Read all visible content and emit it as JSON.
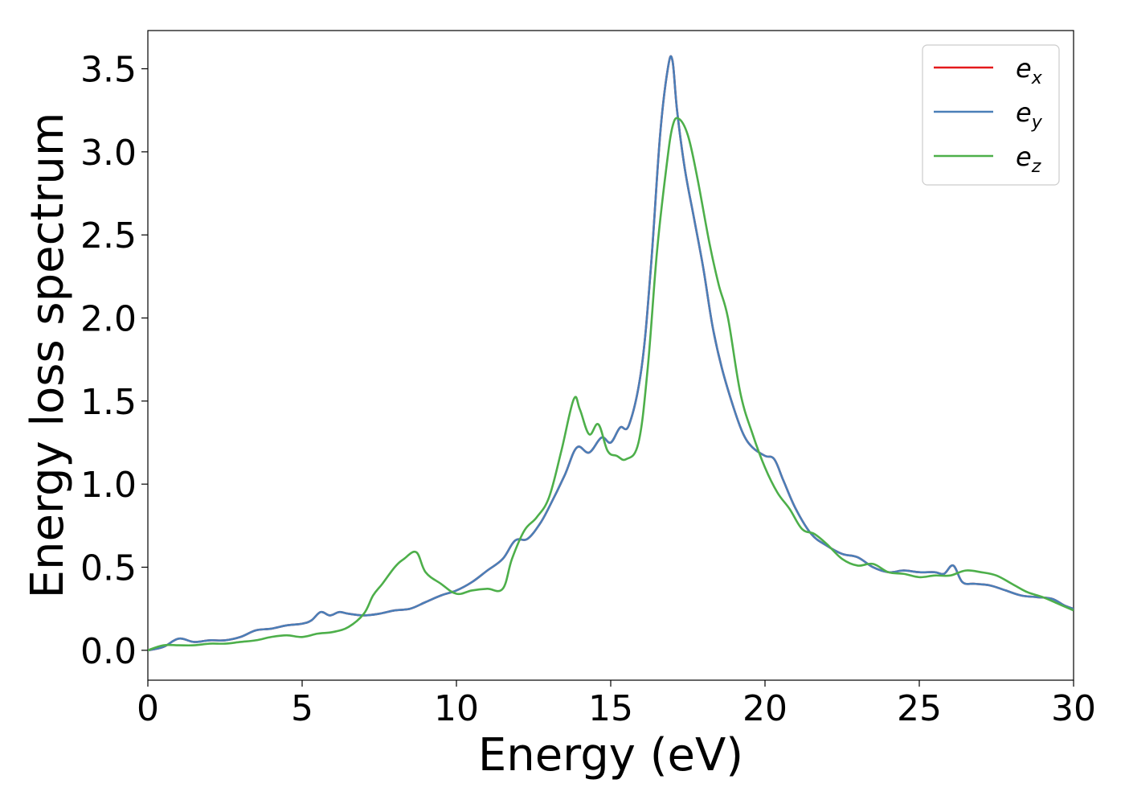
{
  "chart_data": {
    "type": "line",
    "xlabel": "Energy (eV)",
    "ylabel": "Energy loss spectrum",
    "xlim": [
      0,
      30
    ],
    "ylim": [
      -0.18,
      3.73
    ],
    "x_ticks": [
      0,
      5,
      10,
      15,
      20,
      25,
      30
    ],
    "x_tick_labels": [
      "0",
      "5",
      "10",
      "15",
      "20",
      "25",
      "30"
    ],
    "y_ticks": [
      0.0,
      0.5,
      1.0,
      1.5,
      2.0,
      2.5,
      3.0,
      3.5
    ],
    "y_tick_labels": [
      "0.0",
      "0.5",
      "1.0",
      "1.5",
      "2.0",
      "2.5",
      "3.0",
      "3.5"
    ],
    "grid": false,
    "legend_position": "top-right",
    "series": [
      {
        "name": "e",
        "subscript": "x",
        "color": "#e41a1c",
        "x": [
          0,
          0.5,
          1.0,
          1.5,
          2.0,
          2.5,
          3.0,
          3.5,
          4.0,
          4.5,
          5.0,
          5.3,
          5.6,
          5.9,
          6.2,
          6.5,
          7.0,
          7.5,
          8.0,
          8.5,
          9.0,
          9.5,
          10.0,
          10.5,
          11.0,
          11.5,
          11.9,
          12.3,
          12.7,
          13.0,
          13.5,
          13.9,
          14.3,
          14.7,
          15.0,
          15.3,
          15.6,
          16.0,
          16.3,
          16.6,
          16.85,
          17.0,
          17.15,
          17.4,
          17.7,
          18.0,
          18.3,
          18.6,
          19.0,
          19.3,
          19.6,
          20.0,
          20.3,
          20.6,
          21.0,
          21.5,
          22.0,
          22.5,
          23.0,
          23.5,
          24.0,
          24.5,
          25.0,
          25.5,
          25.8,
          26.1,
          26.4,
          26.8,
          27.3,
          27.8,
          28.3,
          28.8,
          29.3,
          29.7,
          30.0
        ],
        "y": [
          0.0,
          0.02,
          0.07,
          0.05,
          0.06,
          0.06,
          0.08,
          0.12,
          0.13,
          0.15,
          0.16,
          0.18,
          0.23,
          0.21,
          0.23,
          0.22,
          0.21,
          0.22,
          0.24,
          0.25,
          0.29,
          0.33,
          0.36,
          0.41,
          0.48,
          0.55,
          0.66,
          0.67,
          0.76,
          0.86,
          1.05,
          1.22,
          1.19,
          1.28,
          1.25,
          1.34,
          1.36,
          1.7,
          2.3,
          3.1,
          3.5,
          3.55,
          3.25,
          2.9,
          2.6,
          2.3,
          1.95,
          1.7,
          1.45,
          1.3,
          1.22,
          1.17,
          1.15,
          1.02,
          0.85,
          0.7,
          0.63,
          0.58,
          0.56,
          0.5,
          0.47,
          0.48,
          0.47,
          0.47,
          0.46,
          0.51,
          0.41,
          0.4,
          0.39,
          0.36,
          0.33,
          0.32,
          0.31,
          0.27,
          0.25
        ]
      },
      {
        "name": "e",
        "subscript": "y",
        "color": "#4a7fb8",
        "x": [
          0,
          0.5,
          1.0,
          1.5,
          2.0,
          2.5,
          3.0,
          3.5,
          4.0,
          4.5,
          5.0,
          5.3,
          5.6,
          5.9,
          6.2,
          6.5,
          7.0,
          7.5,
          8.0,
          8.5,
          9.0,
          9.5,
          10.0,
          10.5,
          11.0,
          11.5,
          11.9,
          12.3,
          12.7,
          13.0,
          13.5,
          13.9,
          14.3,
          14.7,
          15.0,
          15.3,
          15.6,
          16.0,
          16.3,
          16.6,
          16.85,
          17.0,
          17.15,
          17.4,
          17.7,
          18.0,
          18.3,
          18.6,
          19.0,
          19.3,
          19.6,
          20.0,
          20.3,
          20.6,
          21.0,
          21.5,
          22.0,
          22.5,
          23.0,
          23.5,
          24.0,
          24.5,
          25.0,
          25.5,
          25.8,
          26.1,
          26.4,
          26.8,
          27.3,
          27.8,
          28.3,
          28.8,
          29.3,
          29.7,
          30.0
        ],
        "y": [
          0.0,
          0.02,
          0.07,
          0.05,
          0.06,
          0.06,
          0.08,
          0.12,
          0.13,
          0.15,
          0.16,
          0.18,
          0.23,
          0.21,
          0.23,
          0.22,
          0.21,
          0.22,
          0.24,
          0.25,
          0.29,
          0.33,
          0.36,
          0.41,
          0.48,
          0.55,
          0.66,
          0.67,
          0.76,
          0.86,
          1.05,
          1.22,
          1.19,
          1.28,
          1.25,
          1.34,
          1.36,
          1.7,
          2.3,
          3.1,
          3.5,
          3.55,
          3.25,
          2.9,
          2.6,
          2.3,
          1.95,
          1.7,
          1.45,
          1.3,
          1.22,
          1.17,
          1.15,
          1.02,
          0.85,
          0.7,
          0.63,
          0.58,
          0.56,
          0.5,
          0.47,
          0.48,
          0.47,
          0.47,
          0.46,
          0.51,
          0.41,
          0.4,
          0.39,
          0.36,
          0.33,
          0.32,
          0.31,
          0.27,
          0.25
        ]
      },
      {
        "name": "e",
        "subscript": "z",
        "color": "#4daf4a",
        "x": [
          0,
          0.5,
          1.0,
          1.5,
          2.0,
          2.5,
          3.0,
          3.5,
          4.0,
          4.5,
          5.0,
          5.5,
          6.0,
          6.5,
          7.0,
          7.3,
          7.6,
          8.0,
          8.3,
          8.7,
          9.0,
          9.5,
          10.0,
          10.5,
          11.0,
          11.5,
          11.8,
          12.2,
          12.6,
          13.0,
          13.4,
          13.8,
          14.0,
          14.3,
          14.6,
          14.9,
          15.2,
          15.5,
          15.9,
          16.2,
          16.5,
          16.8,
          17.0,
          17.2,
          17.5,
          17.8,
          18.2,
          18.5,
          18.8,
          19.2,
          19.6,
          20.0,
          20.4,
          20.8,
          21.2,
          21.6,
          22.0,
          22.5,
          23.0,
          23.5,
          24.0,
          24.5,
          25.0,
          25.5,
          26.0,
          26.5,
          27.0,
          27.5,
          28.0,
          28.5,
          29.0,
          29.5,
          30.0
        ],
        "y": [
          0.0,
          0.03,
          0.03,
          0.03,
          0.04,
          0.04,
          0.05,
          0.06,
          0.08,
          0.09,
          0.08,
          0.1,
          0.11,
          0.14,
          0.22,
          0.33,
          0.4,
          0.5,
          0.55,
          0.59,
          0.47,
          0.4,
          0.34,
          0.36,
          0.37,
          0.37,
          0.55,
          0.72,
          0.8,
          0.92,
          1.2,
          1.51,
          1.45,
          1.3,
          1.36,
          1.2,
          1.17,
          1.15,
          1.25,
          1.7,
          2.4,
          2.9,
          3.15,
          3.2,
          3.1,
          2.85,
          2.45,
          2.2,
          2.0,
          1.55,
          1.3,
          1.1,
          0.95,
          0.85,
          0.73,
          0.7,
          0.64,
          0.55,
          0.51,
          0.52,
          0.47,
          0.46,
          0.44,
          0.45,
          0.45,
          0.48,
          0.47,
          0.45,
          0.4,
          0.35,
          0.32,
          0.28,
          0.24
        ]
      }
    ]
  }
}
